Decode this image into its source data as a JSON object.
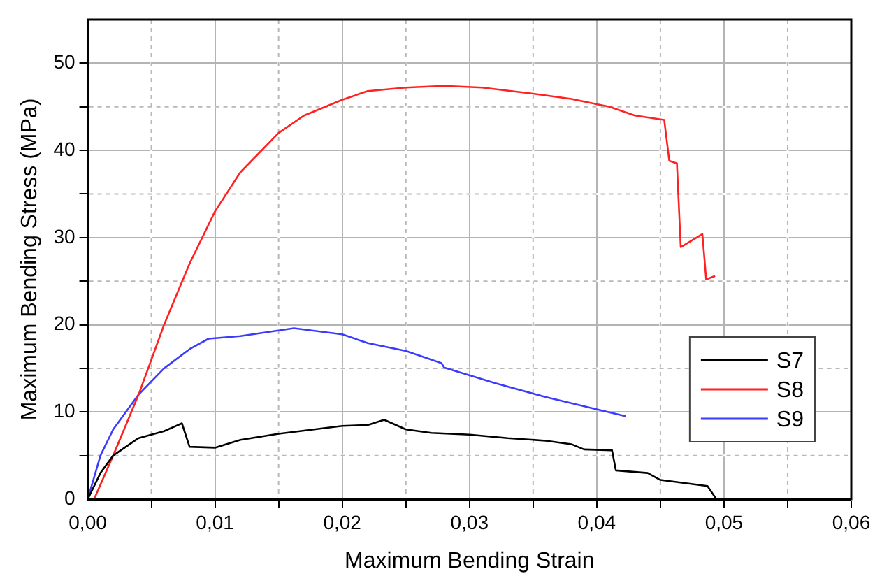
{
  "chart_data": {
    "type": "line",
    "xlabel": "Maximum Bending Strain",
    "ylabel": "Maximum Bending Stress (MPa)",
    "xlim": [
      0,
      0.06
    ],
    "ylim": [
      0,
      55
    ],
    "xticks": [
      {
        "value": 0,
        "label": "0,00"
      },
      {
        "value": 0.005,
        "label": null
      },
      {
        "value": 0.01,
        "label": "0,01"
      },
      {
        "value": 0.015,
        "label": null
      },
      {
        "value": 0.02,
        "label": "0,02"
      },
      {
        "value": 0.025,
        "label": null
      },
      {
        "value": 0.03,
        "label": "0,03"
      },
      {
        "value": 0.035,
        "label": null
      },
      {
        "value": 0.04,
        "label": "0,04"
      },
      {
        "value": 0.045,
        "label": null
      },
      {
        "value": 0.05,
        "label": "0,05"
      },
      {
        "value": 0.055,
        "label": null
      },
      {
        "value": 0.06,
        "label": "0,06"
      }
    ],
    "yticks": [
      0,
      {
        "value": 5,
        "label": null
      },
      10,
      {
        "value": 15,
        "label": null
      },
      20,
      {
        "value": 25,
        "label": null
      },
      30,
      {
        "value": 35,
        "label": null
      },
      40,
      {
        "value": 45,
        "label": null
      },
      50
    ],
    "grid": true,
    "legend": "bottom right",
    "marker": "none",
    "line_style": "solid",
    "series": [
      {
        "name": "S7",
        "color": "#000000",
        "x": [
          0,
          0.001,
          0.002,
          0.004,
          0.006,
          0.0074,
          0.008,
          0.01,
          0.012,
          0.015,
          0.02,
          0.022,
          0.0233,
          0.025,
          0.027,
          0.03,
          0.033,
          0.036,
          0.038,
          0.039,
          0.0412,
          0.0415,
          0.044,
          0.045,
          0.0487,
          0.0494
        ],
        "values": [
          0,
          3,
          5,
          7,
          7.8,
          8.7,
          6,
          5.9,
          6.8,
          7.5,
          8.4,
          8.5,
          9.1,
          8,
          7.6,
          7.4,
          7,
          6.7,
          6.3,
          5.7,
          5.6,
          3.3,
          3,
          2.2,
          1.5,
          0
        ]
      },
      {
        "name": "S8",
        "color": "#ff2020",
        "x": [
          0.0005,
          0.002,
          0.004,
          0.006,
          0.008,
          0.01,
          0.012,
          0.015,
          0.017,
          0.02,
          0.022,
          0.025,
          0.028,
          0.031,
          0.035,
          0.038,
          0.041,
          0.043,
          0.0453,
          0.0457,
          0.0463,
          0.0466,
          0.0483,
          0.0486,
          0.0493
        ],
        "values": [
          0,
          5,
          12,
          20,
          27,
          33,
          37.5,
          42,
          44,
          45.8,
          46.8,
          47.2,
          47.4,
          47.2,
          46.5,
          45.9,
          45,
          44,
          43.5,
          38.8,
          38.5,
          28.9,
          30.4,
          25.2,
          25.6
        ]
      },
      {
        "name": "S9",
        "color": "#3b3bff",
        "x": [
          0,
          0.001,
          0.002,
          0.004,
          0.006,
          0.008,
          0.0095,
          0.012,
          0.0162,
          0.02,
          0.022,
          0.025,
          0.0278,
          0.028,
          0.032,
          0.036,
          0.04,
          0.0423
        ],
        "values": [
          0,
          5,
          8,
          12,
          15,
          17.2,
          18.4,
          18.7,
          19.6,
          18.9,
          17.9,
          17,
          15.6,
          15.1,
          13.3,
          11.7,
          10.3,
          9.5
        ]
      }
    ]
  }
}
